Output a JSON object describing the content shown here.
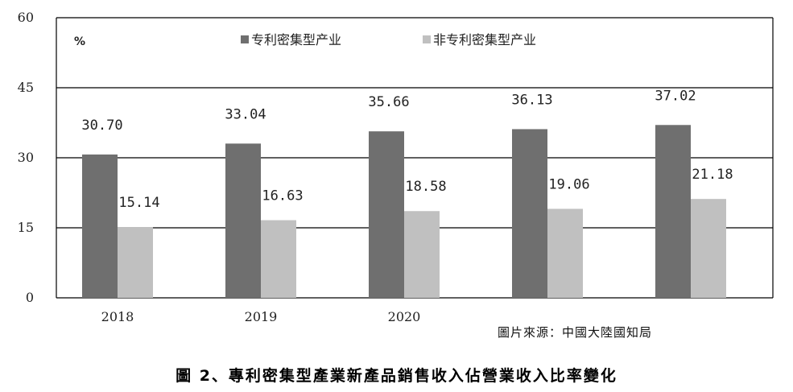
{
  "chart_data": {
    "type": "bar",
    "categories": [
      "2018",
      "2019",
      "2020",
      "",
      ""
    ],
    "series": [
      {
        "name": "专利密集型产业",
        "values": [
          30.7,
          33.04,
          35.66,
          36.13,
          37.02
        ],
        "color": "#6f6f6f",
        "labels": [
          "30.70",
          "33.04",
          "35.66",
          "36.13",
          "37.02"
        ]
      },
      {
        "name": "非专利密集型产业",
        "values": [
          15.14,
          16.63,
          18.58,
          19.06,
          21.18
        ],
        "color": "#c0c0c0",
        "labels": [
          "15.14",
          "16.63",
          "18.58",
          "19.06",
          "21.18"
        ]
      }
    ],
    "ylim": [
      0,
      60
    ],
    "yticks": [
      "0",
      "15",
      "30",
      "45",
      "60"
    ],
    "unit": "%",
    "grid": true,
    "legend": "top"
  },
  "source": "圖片來源：中國大陸國知局",
  "caption": "圖 2、專利密集型產業新產品銷售收入佔營業收入比率變化"
}
